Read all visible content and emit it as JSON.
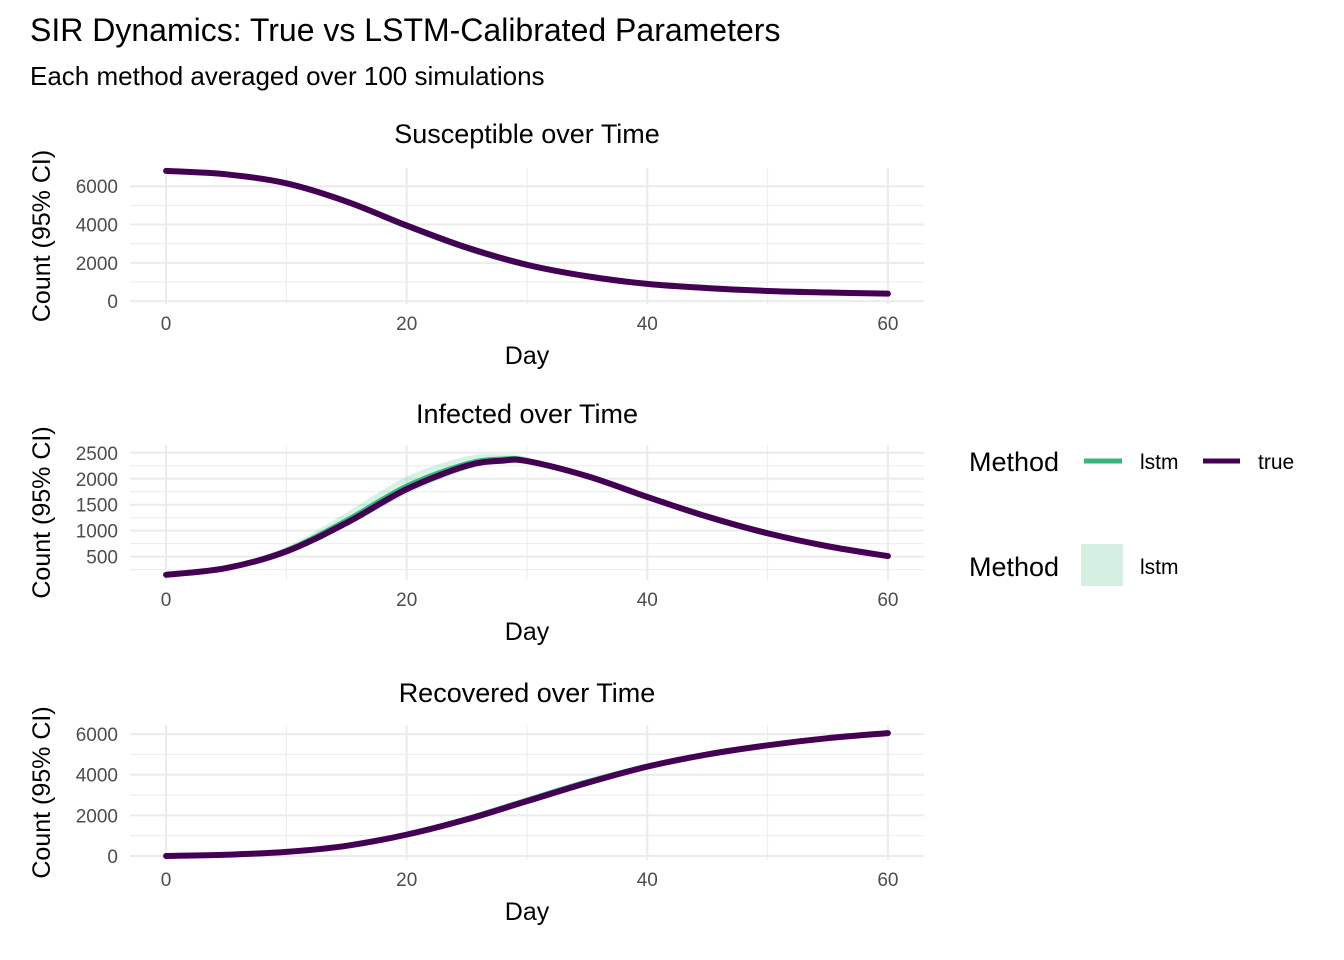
{
  "title": "SIR Dynamics: True vs LSTM-Calibrated Parameters",
  "subtitle": "Each method averaged over 100 simulations",
  "colors": {
    "lstm": "#35b779",
    "true": "#440154",
    "ribbon": "#d5f0e3",
    "grid": "#ebebeb"
  },
  "legend": {
    "line_title": "Method",
    "line_items": [
      {
        "key": "lstm",
        "label": "lstm"
      },
      {
        "key": "true",
        "label": "true"
      }
    ],
    "fill_title": "Method",
    "fill_items": [
      {
        "key": "lstm",
        "label": "lstm"
      }
    ],
    "placement": "right"
  },
  "chart_data": [
    {
      "type": "line",
      "title": "Susceptible over Time",
      "xlabel": "Day",
      "ylabel": "Count (95% CI)",
      "xlim": [
        -3,
        63
      ],
      "ylim": [
        -150,
        6950
      ],
      "xticks": [
        0,
        20,
        40,
        60
      ],
      "yticks": [
        0,
        2000,
        4000,
        6000
      ],
      "x": [
        0,
        5,
        10,
        15,
        20,
        25,
        30,
        35,
        40,
        45,
        50,
        55,
        60
      ],
      "series": [
        {
          "name": "lstm",
          "values": [
            6800,
            6610,
            6130,
            5150,
            3880,
            2720,
            1840,
            1260,
            880,
            660,
            520,
            440,
            380
          ],
          "lower": [
            6790,
            6580,
            6080,
            5060,
            3760,
            2620,
            1770,
            1210,
            850,
            640,
            505,
            430,
            370
          ],
          "upper": [
            6810,
            6640,
            6180,
            5240,
            3990,
            2820,
            1910,
            1310,
            910,
            680,
            535,
            450,
            390
          ]
        },
        {
          "name": "true",
          "values": [
            6800,
            6620,
            6150,
            5200,
            3950,
            2800,
            1900,
            1300,
            900,
            680,
            530,
            450,
            390
          ]
        }
      ]
    },
    {
      "type": "line",
      "title": "Infected over Time",
      "xlabel": "Day",
      "ylabel": "Count (95% CI)",
      "xlim": [
        -3,
        63
      ],
      "ylim": [
        50,
        2650
      ],
      "xticks": [
        0,
        20,
        40,
        60
      ],
      "yticks": [
        500,
        1000,
        1500,
        2000,
        2500
      ],
      "x": [
        0,
        5,
        10,
        15,
        20,
        25,
        28,
        30,
        35,
        40,
        45,
        50,
        55,
        60
      ],
      "series": [
        {
          "name": "lstm",
          "values": [
            150,
            290,
            630,
            1210,
            1870,
            2300,
            2390,
            2360,
            2040,
            1630,
            1250,
            930,
            690,
            500
          ],
          "lower": [
            150,
            270,
            570,
            1080,
            1700,
            2170,
            2300,
            2300,
            2000,
            1600,
            1220,
            900,
            670,
            490
          ],
          "upper": [
            150,
            310,
            690,
            1350,
            2040,
            2430,
            2470,
            2420,
            2080,
            1670,
            1280,
            960,
            710,
            515
          ]
        },
        {
          "name": "true",
          "values": [
            150,
            280,
            600,
            1150,
            1800,
            2250,
            2350,
            2340,
            2050,
            1650,
            1270,
            950,
            700,
            510
          ]
        }
      ]
    },
    {
      "type": "line",
      "title": "Recovered over Time",
      "xlabel": "Day",
      "ylabel": "Count (95% CI)",
      "xlim": [
        -3,
        63
      ],
      "ylim": [
        -200,
        6450
      ],
      "xticks": [
        0,
        20,
        40,
        60
      ],
      "yticks": [
        0,
        2000,
        4000,
        6000
      ],
      "x": [
        0,
        5,
        10,
        15,
        20,
        25,
        30,
        35,
        40,
        45,
        50,
        55,
        60
      ],
      "series": [
        {
          "name": "lstm",
          "values": [
            0,
            60,
            210,
            520,
            1090,
            1860,
            2780,
            3680,
            4450,
            5050,
            5480,
            5820,
            6070
          ],
          "lower": [
            0,
            55,
            195,
            490,
            1040,
            1790,
            2700,
            3610,
            4400,
            5010,
            5450,
            5800,
            6050
          ],
          "upper": [
            0,
            65,
            225,
            550,
            1140,
            1930,
            2860,
            3750,
            4500,
            5090,
            5510,
            5840,
            6090
          ]
        },
        {
          "name": "true",
          "values": [
            0,
            60,
            200,
            500,
            1050,
            1800,
            2700,
            3600,
            4400,
            5000,
            5450,
            5800,
            6050
          ]
        }
      ]
    }
  ]
}
